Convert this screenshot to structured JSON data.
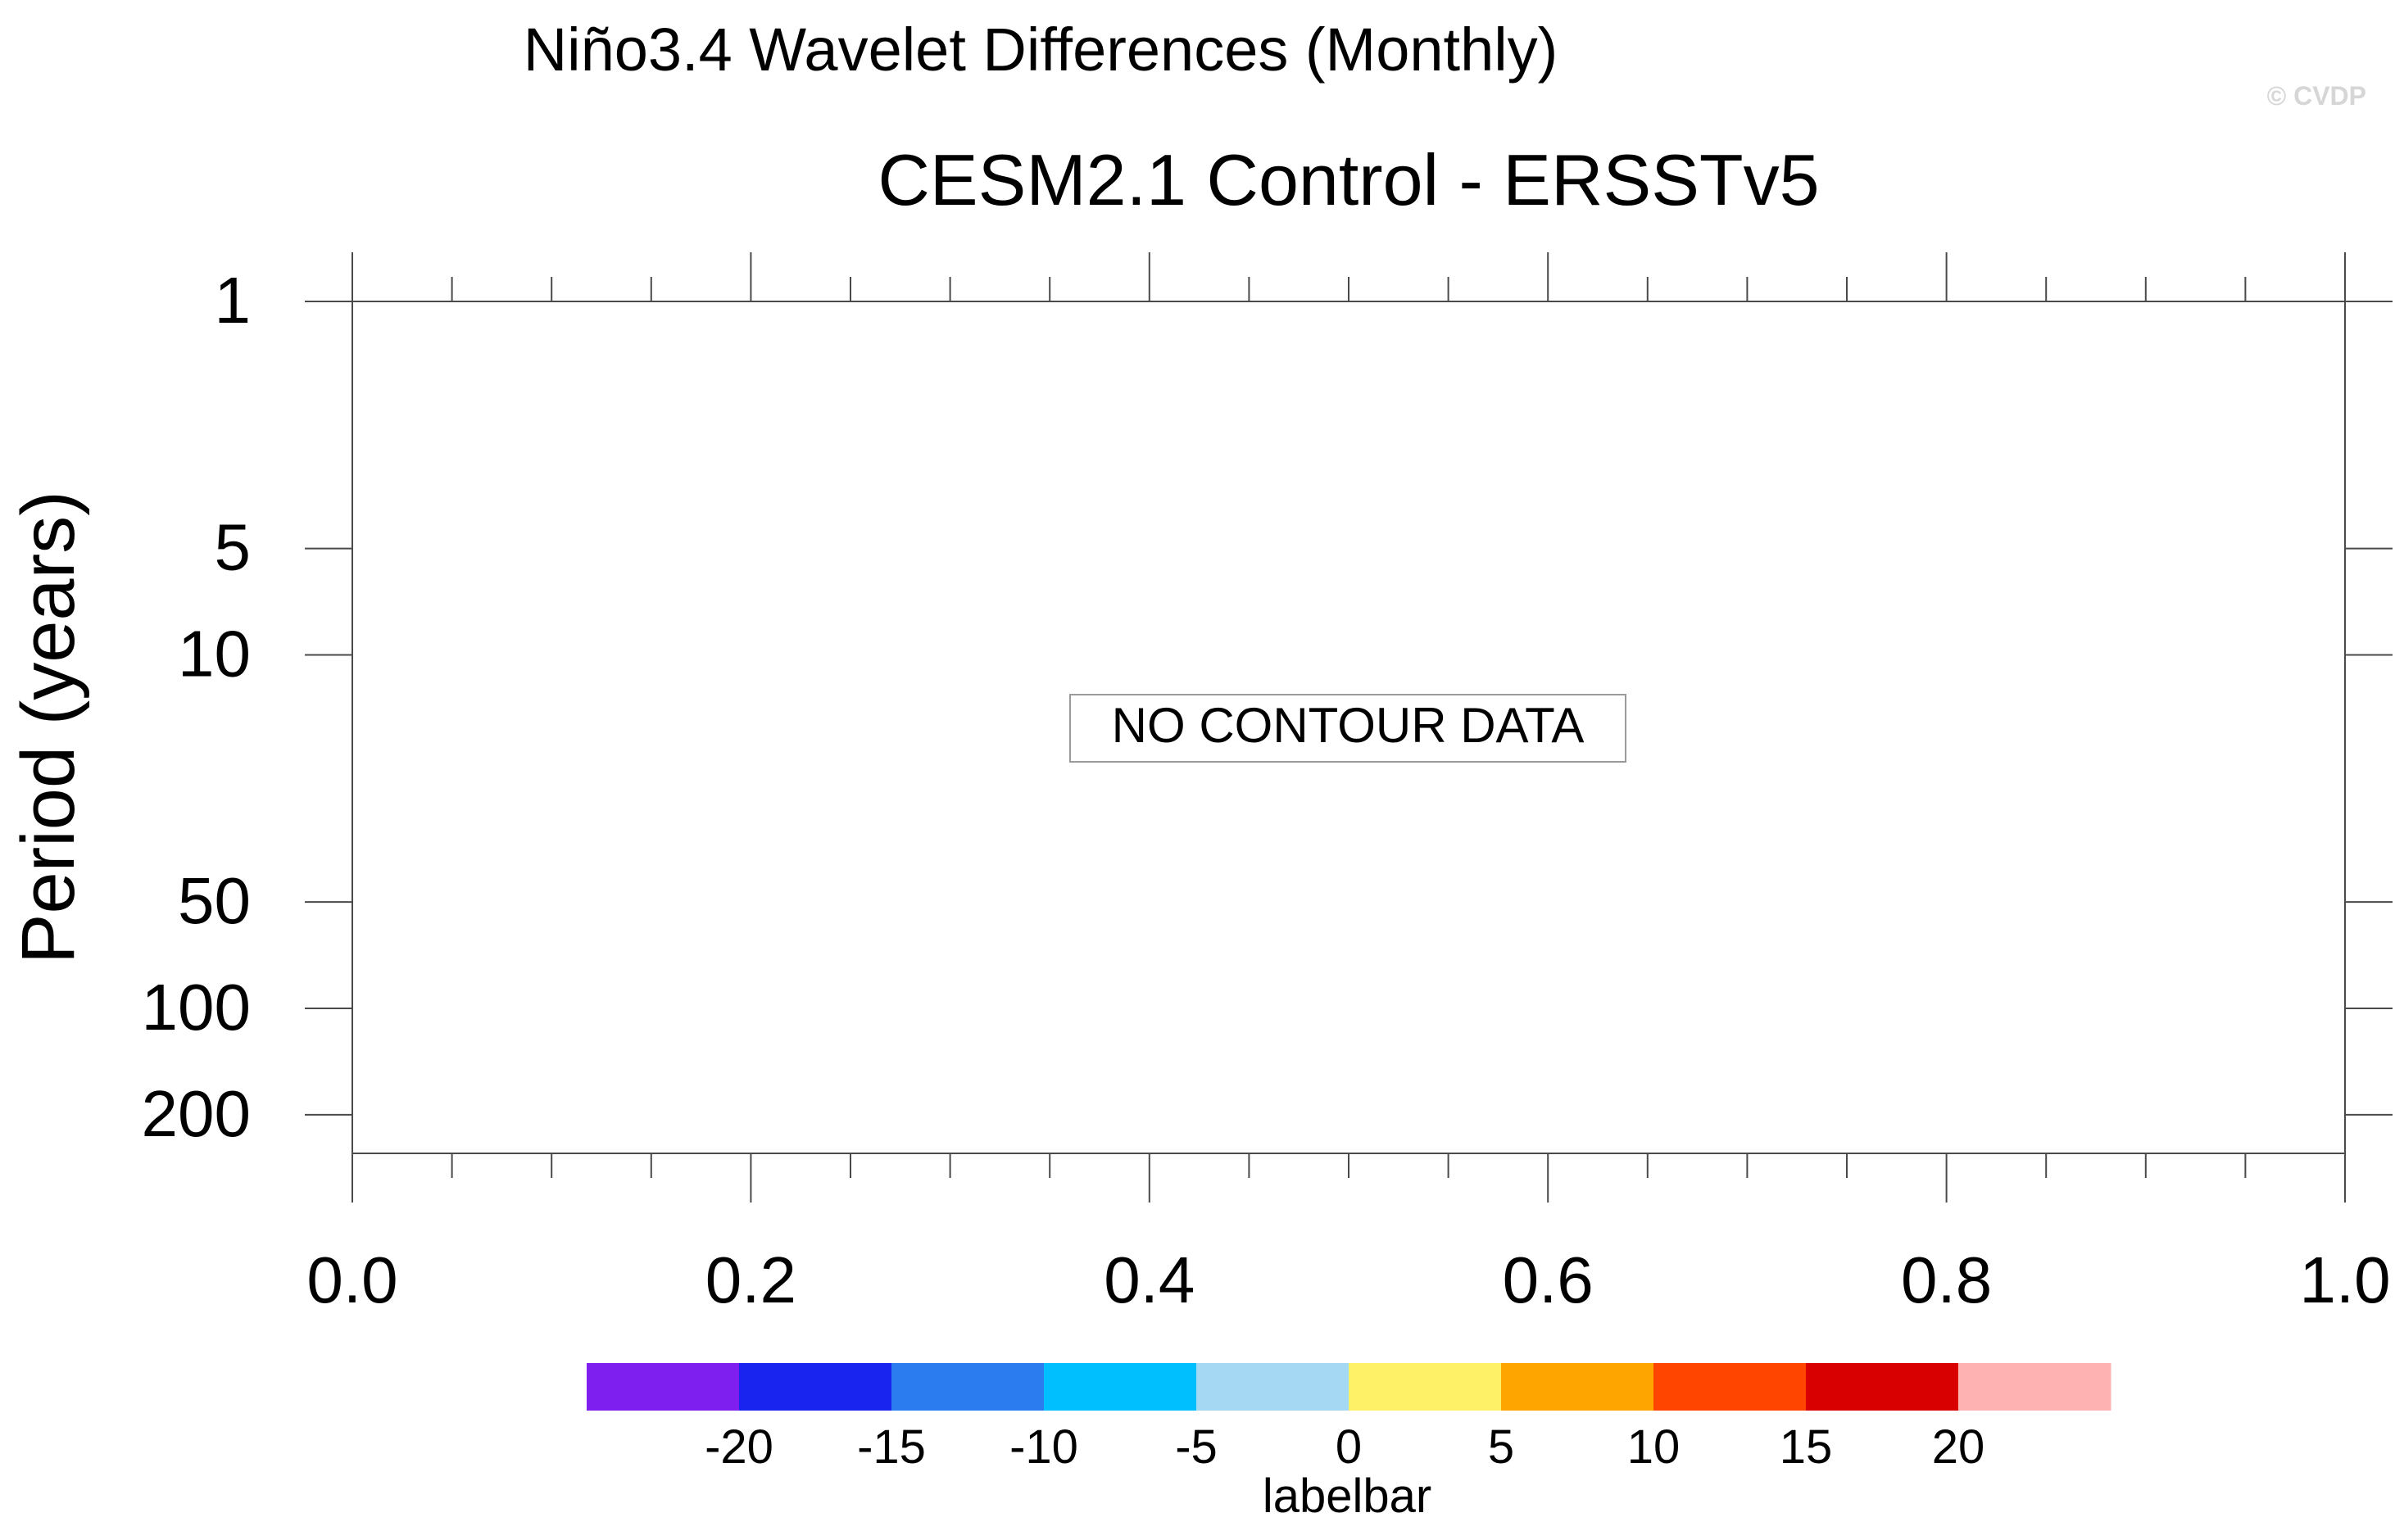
{
  "chart_data": {
    "type": "heatmap",
    "title": "Niño3.4 Wavelet Differences (Monthly)",
    "subtitle": "CESM2.1 Control - ERSSTv5",
    "watermark": "© CVDP",
    "xlabel": "",
    "ylabel": "Period (years)",
    "xlim": [
      0.0,
      1.0
    ],
    "ylim": [
      1,
      300
    ],
    "y_scale": "log",
    "x_major_ticks": [
      0.0,
      0.2,
      0.4,
      0.6,
      0.8,
      1.0
    ],
    "x_tick_labels": [
      "0.0",
      "0.2",
      "0.4",
      "0.6",
      "0.8",
      "1.0"
    ],
    "x_minor_ticks": [
      0.05,
      0.1,
      0.15,
      0.25,
      0.3,
      0.35,
      0.45,
      0.5,
      0.55,
      0.65,
      0.7,
      0.75,
      0.85,
      0.9,
      0.95
    ],
    "y_ticks": [
      1,
      5,
      10,
      50,
      100,
      200
    ],
    "y_tick_labels": [
      "1",
      "5",
      "10",
      "50",
      "100",
      "200"
    ],
    "message": "NO CONTOUR DATA",
    "values": [],
    "colorbar": {
      "label": "labelbar",
      "levels": [
        -20,
        -15,
        -10,
        -5,
        0,
        5,
        10,
        15,
        20
      ],
      "level_labels": [
        "-20",
        "-15",
        "-10",
        "-5",
        "0",
        "5",
        "10",
        "15",
        "20"
      ],
      "colors": [
        "#7f1fef",
        "#1a24ef",
        "#2b7def",
        "#00bfff",
        "#a5d8f3",
        "#fff167",
        "#ffa500",
        "#ff4500",
        "#d80000",
        "#ffb2b2"
      ]
    },
    "grid": false,
    "legend": "bottom"
  }
}
